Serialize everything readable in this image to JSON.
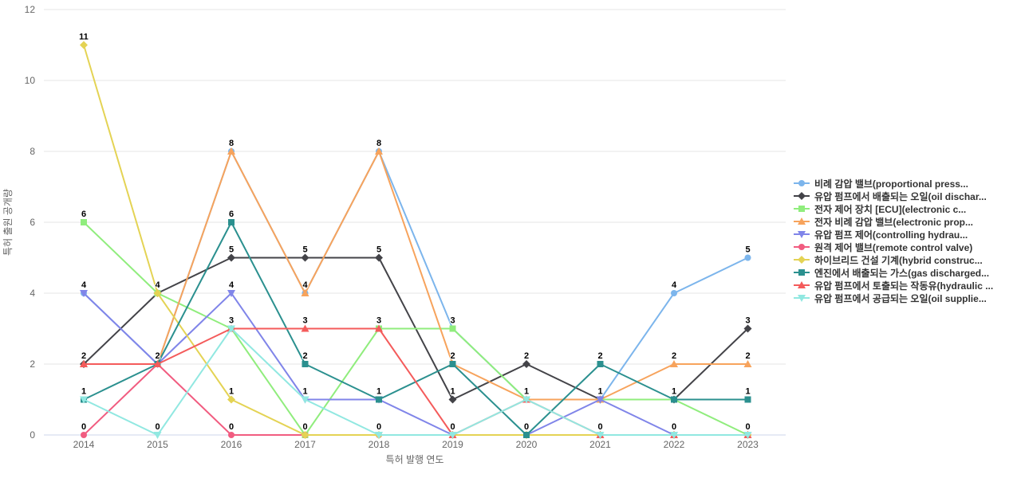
{
  "chart_data": {
    "type": "line",
    "title": "",
    "xlabel": "특허 발행 연도",
    "ylabel": "특허 출원 공개량",
    "categories": [
      "2014",
      "2015",
      "2016",
      "2017",
      "2018",
      "2019",
      "2020",
      "2021",
      "2022",
      "2023"
    ],
    "yticks": [
      0,
      2,
      4,
      6,
      8,
      10,
      12
    ],
    "ylim": [
      0,
      12
    ],
    "grid": true,
    "legend_position": "right",
    "grid_color": "#e6e6e6",
    "axis_line_color": "#ccd6eb",
    "data_label_color": "#000000",
    "series": [
      {
        "name": "비례 감압 밸브(proportional press...",
        "color": "#7cb5ec",
        "marker": "circle",
        "values": [
          4,
          2,
          8,
          4,
          8,
          3,
          1,
          1,
          4,
          5
        ]
      },
      {
        "name": "유압 펌프에서 배출되는 오일(oil dischar...",
        "color": "#434348",
        "marker": "diamond",
        "values": [
          2,
          4,
          5,
          5,
          5,
          1,
          2,
          1,
          1,
          3
        ]
      },
      {
        "name": "전자 제어 장치 [ECU](electronic c...",
        "color": "#90ed7d",
        "marker": "square",
        "values": [
          6,
          4,
          3,
          0,
          3,
          3,
          1,
          1,
          1,
          0
        ]
      },
      {
        "name": "전자 비례 감압 밸브(electronic prop...",
        "color": "#f7a35c",
        "marker": "triangle",
        "values": [
          2,
          2,
          8,
          4,
          8,
          2,
          1,
          1,
          2,
          2
        ]
      },
      {
        "name": "유압 펌프 제어(controlling hydrau...",
        "color": "#8085e9",
        "marker": "triangle-down",
        "values": [
          4,
          2,
          4,
          1,
          1,
          0,
          0,
          1,
          0,
          0
        ]
      },
      {
        "name": "원격 제어 밸브(remote control valve)",
        "color": "#f15c80",
        "marker": "circle",
        "values": [
          0,
          2,
          0,
          0,
          0,
          0,
          0,
          0,
          0,
          0
        ]
      },
      {
        "name": "하이브리드 건설 기계(hybrid construc...",
        "color": "#e4d354",
        "marker": "diamond",
        "values": [
          11,
          4,
          1,
          0,
          0,
          0,
          0,
          0,
          0,
          0
        ]
      },
      {
        "name": "엔진에서 배출되는 가스(gas discharged...",
        "color": "#2b908f",
        "marker": "square",
        "values": [
          1,
          2,
          6,
          2,
          1,
          2,
          0,
          2,
          1,
          1
        ]
      },
      {
        "name": "유압 펌프에서 토출되는 작동유(hydraulic ...",
        "color": "#f45b5b",
        "marker": "triangle",
        "values": [
          2,
          2,
          3,
          3,
          3,
          0,
          1,
          0,
          0,
          0
        ]
      },
      {
        "name": "유압 펌프에서 공급되는 오일(oil supplie...",
        "color": "#91e8e1",
        "marker": "triangle-down",
        "values": [
          1,
          0,
          3,
          1,
          0,
          0,
          1,
          0,
          0,
          0
        ]
      }
    ]
  }
}
